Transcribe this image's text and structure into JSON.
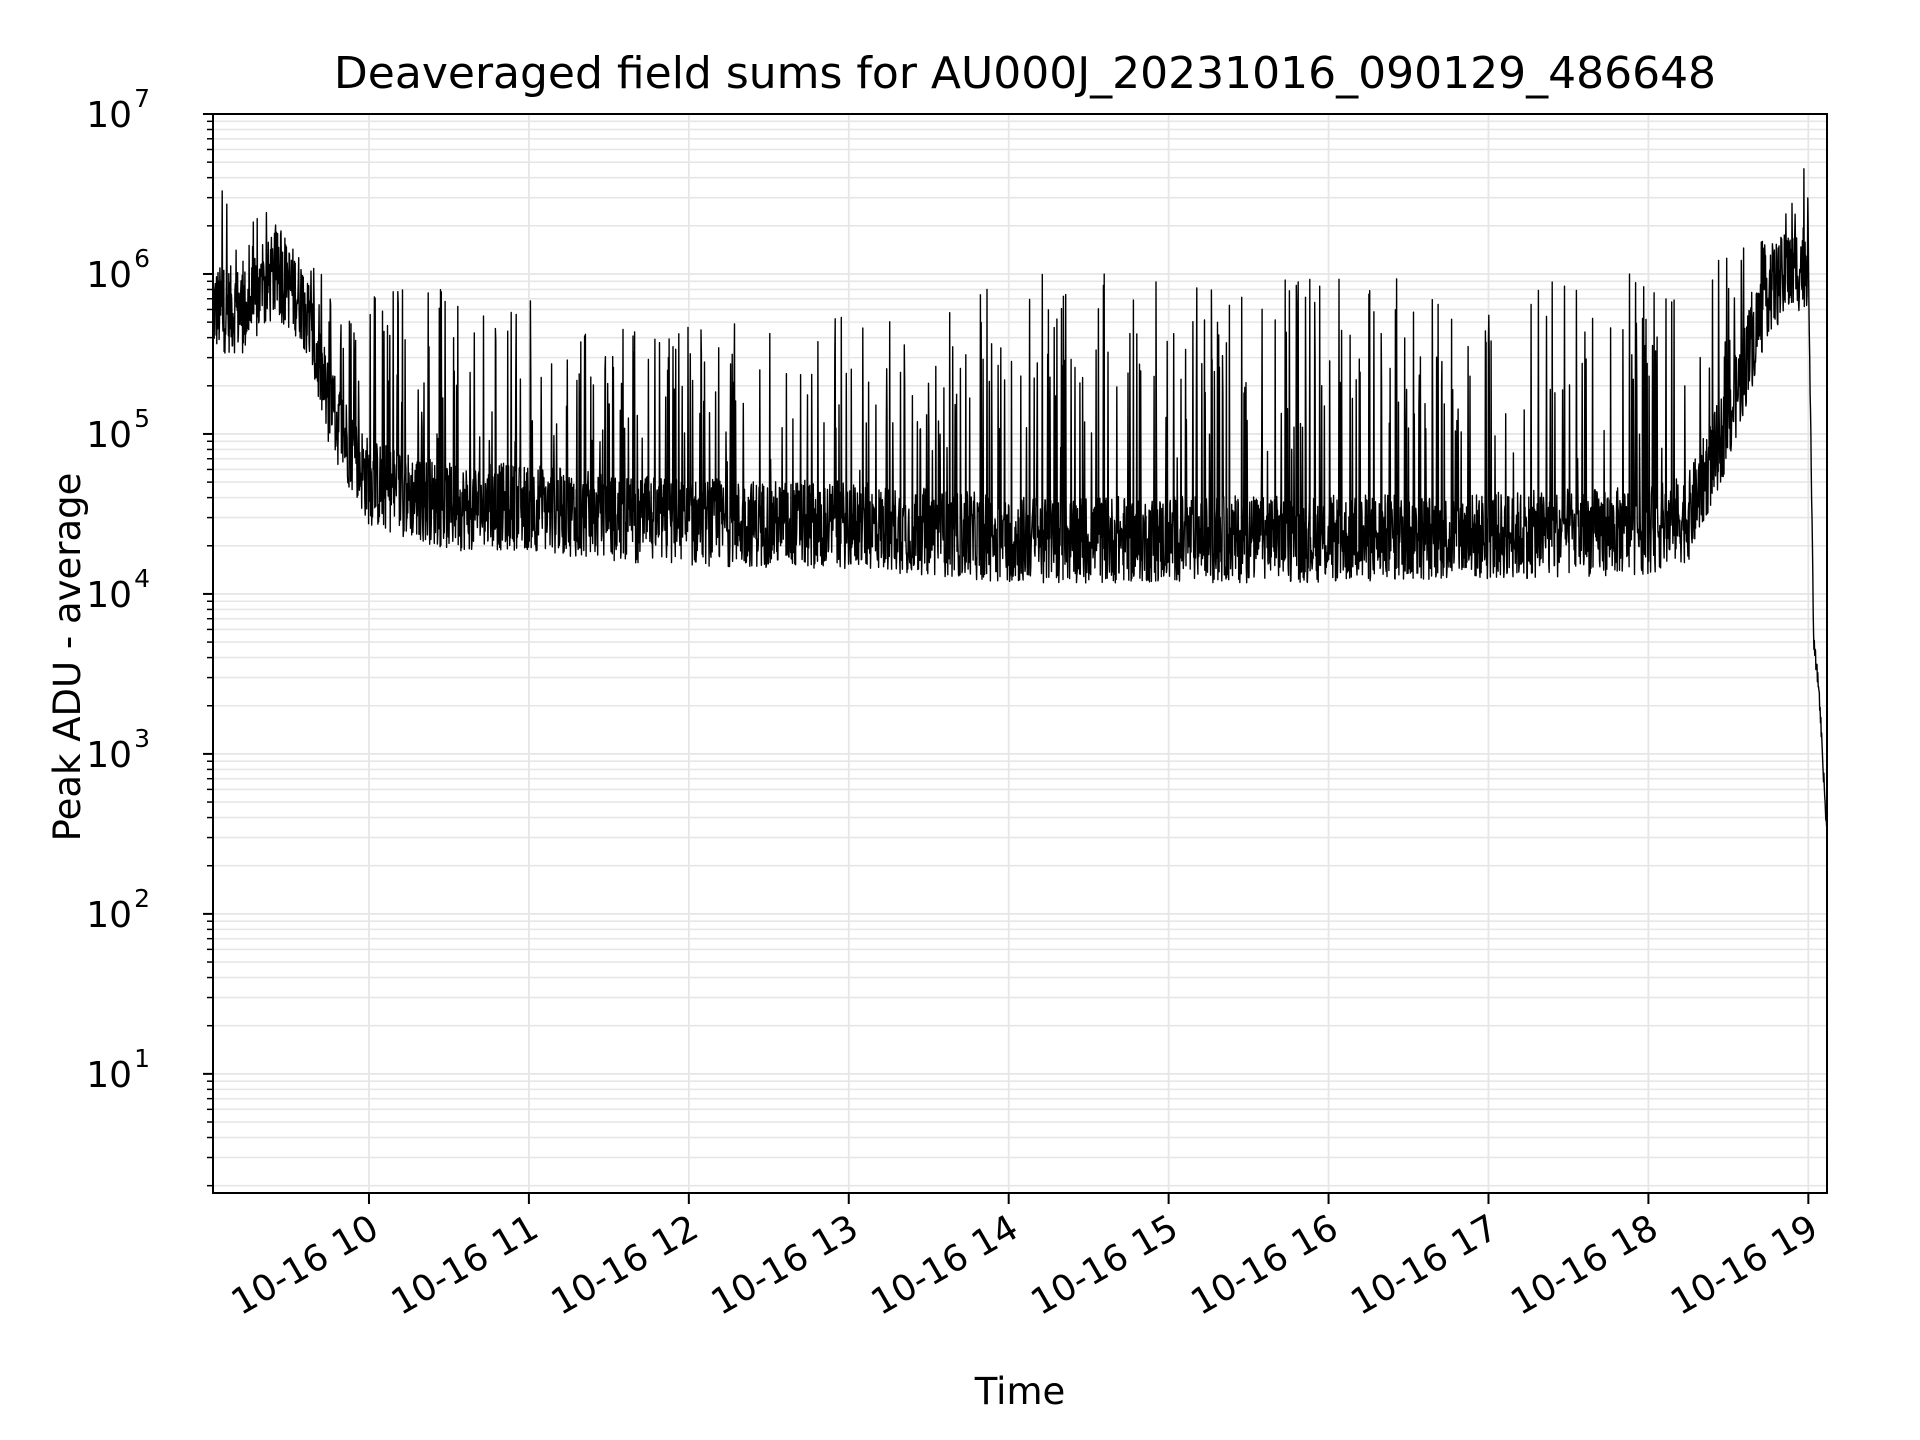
{
  "chart_data": {
    "type": "line",
    "title": "Deaveraged field sums for AU000J_20231016_090129_486648",
    "xlabel": "Time",
    "ylabel": "Peak ADU - average",
    "yscale": "log",
    "ylim": [
      1.8,
      10000000
    ],
    "xlim": [
      "2023-10-16 09:01:29",
      "2023-10-16 19:07:00"
    ],
    "grid": true,
    "line_color": "#000000",
    "grid_color": "#e6e6e6",
    "x_ticks": [
      {
        "time": "2023-10-16 10:00",
        "label": "10-16 10"
      },
      {
        "time": "2023-10-16 11:00",
        "label": "10-16 11"
      },
      {
        "time": "2023-10-16 12:00",
        "label": "10-16 12"
      },
      {
        "time": "2023-10-16 13:00",
        "label": "10-16 13"
      },
      {
        "time": "2023-10-16 14:00",
        "label": "10-16 14"
      },
      {
        "time": "2023-10-16 15:00",
        "label": "10-16 15"
      },
      {
        "time": "2023-10-16 16:00",
        "label": "10-16 16"
      },
      {
        "time": "2023-10-16 17:00",
        "label": "10-16 17"
      },
      {
        "time": "2023-10-16 18:00",
        "label": "10-16 18"
      },
      {
        "time": "2023-10-16 19:00",
        "label": "10-16 19"
      }
    ],
    "y_ticks": [
      {
        "value": 10,
        "base": "10",
        "exp": "1"
      },
      {
        "value": 100,
        "base": "10",
        "exp": "2"
      },
      {
        "value": 1000,
        "base": "10",
        "exp": "3"
      },
      {
        "value": 10000,
        "base": "10",
        "exp": "4"
      },
      {
        "value": 100000,
        "base": "10",
        "exp": "5"
      },
      {
        "value": 1000000,
        "base": "10",
        "exp": "6"
      },
      {
        "value": 10000000,
        "base": "10",
        "exp": "7"
      }
    ],
    "series": [
      {
        "name": "",
        "baseline_points": [
          {
            "time": "2023-10-16 09:01:29",
            "value": 600000
          },
          {
            "time": "2023-10-16 09:15",
            "value": 600000
          },
          {
            "time": "2023-10-16 09:25",
            "value": 1000000
          },
          {
            "time": "2023-10-16 09:35",
            "value": 700000
          },
          {
            "time": "2023-10-16 09:45",
            "value": 150000
          },
          {
            "time": "2023-10-16 10:00",
            "value": 50000
          },
          {
            "time": "2023-10-16 10:30",
            "value": 35000
          },
          {
            "time": "2023-10-16 11:00",
            "value": 35000
          },
          {
            "time": "2023-10-16 11:30",
            "value": 30000
          },
          {
            "time": "2023-10-16 12:00",
            "value": 28000
          },
          {
            "time": "2023-10-16 13:00",
            "value": 27000
          },
          {
            "time": "2023-10-16 14:00",
            "value": 22000
          },
          {
            "time": "2023-10-16 15:00",
            "value": 22000
          },
          {
            "time": "2023-10-16 16:00",
            "value": 22000
          },
          {
            "time": "2023-10-16 17:00",
            "value": 23000
          },
          {
            "time": "2023-10-16 18:00",
            "value": 25000
          },
          {
            "time": "2023-10-16 18:15",
            "value": 30000
          },
          {
            "time": "2023-10-16 18:30",
            "value": 120000
          },
          {
            "time": "2023-10-16 18:45",
            "value": 800000
          },
          {
            "time": "2023-10-16 19:00",
            "value": 1200000
          },
          {
            "time": "2023-10-16 19:02",
            "value": 5000
          },
          {
            "time": "2023-10-16 19:04",
            "value": 2500
          },
          {
            "time": "2023-10-16 19:07",
            "value": 300
          }
        ],
        "spike_envelope": [
          {
            "time": "2023-10-16 09:01:29",
            "value": 5700000
          },
          {
            "time": "2023-10-16 09:45",
            "value": 900000
          },
          {
            "time": "2023-10-16 10:30",
            "value": 900000
          },
          {
            "time": "2023-10-16 11:00",
            "value": 700000
          },
          {
            "time": "2023-10-16 11:30",
            "value": 450000
          },
          {
            "time": "2023-10-16 12:00",
            "value": 500000
          },
          {
            "time": "2023-10-16 13:00",
            "value": 550000
          },
          {
            "time": "2023-10-16 13:35",
            "value": 500000
          },
          {
            "time": "2023-10-16 13:45",
            "value": 1000000
          },
          {
            "time": "2023-10-16 18:15",
            "value": 1000000
          },
          {
            "time": "2023-10-16 18:45",
            "value": 1800000
          },
          {
            "time": "2023-10-16 19:00",
            "value": 5600000
          }
        ]
      }
    ]
  }
}
